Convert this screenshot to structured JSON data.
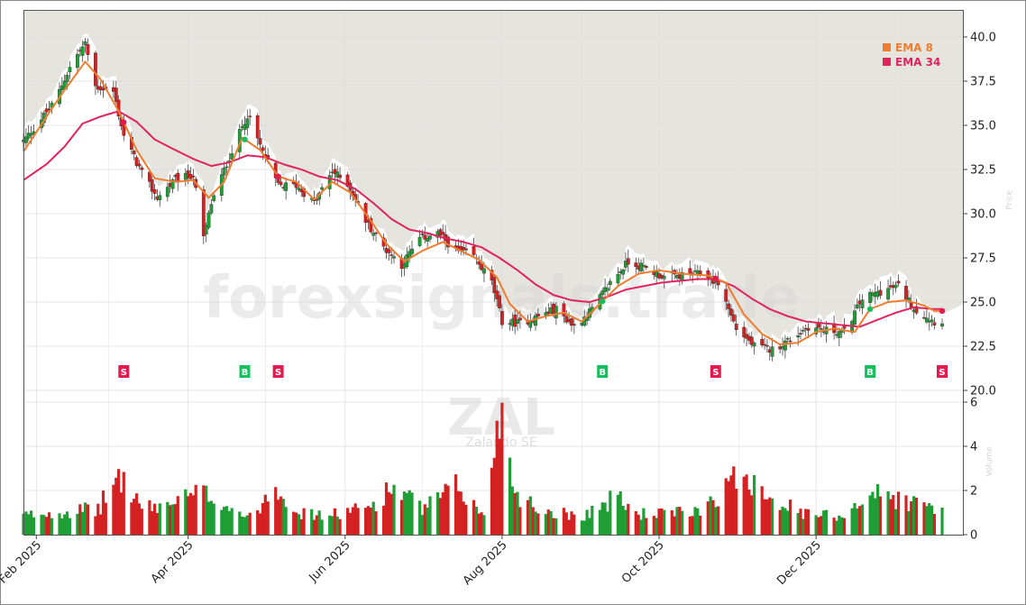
{
  "chart_data": {
    "type": "candlestick",
    "symbol": "ZAL",
    "company": "Zalando SE",
    "watermark": "forexsignals.trade",
    "side_labels": {
      "price": "Price",
      "volume": "Volume"
    },
    "colors": {
      "up": "#1e9e35",
      "down": "#d42121",
      "ema8": "#f07c2e",
      "ema34": "#e0245e",
      "buy": "#13c15c",
      "sell": "#e5194f",
      "background_top": "#e6e4de",
      "grid": "#dddddd"
    },
    "legend": [
      {
        "name": "EMA 8",
        "color": "#f07c2e"
      },
      {
        "name": "EMA 34",
        "color": "#e0245e"
      }
    ],
    "price_axis": {
      "min": 19.0,
      "max": 41.0,
      "ticks": [
        "40.0",
        "37.5",
        "35.0",
        "32.5",
        "30.0",
        "27.5",
        "25.0",
        "22.5",
        "20.0"
      ]
    },
    "volume_axis": {
      "min": 0,
      "max": 7,
      "ticks": [
        "0",
        "2",
        "4",
        "6"
      ],
      "unit": "millions"
    },
    "x_axis": {
      "start": "2025-01-27",
      "end": "2026-01-19",
      "ticks": [
        {
          "label": "Feb 2025",
          "date": "2025-02-01"
        },
        {
          "label": "Apr 2025",
          "date": "2025-04-01"
        },
        {
          "label": "Jun 2025",
          "date": "2025-06-01"
        },
        {
          "label": "Aug 2025",
          "date": "2025-08-01"
        },
        {
          "label": "Oct 2025",
          "date": "2025-10-01"
        },
        {
          "label": "Dec 2025",
          "date": "2025-12-01"
        }
      ]
    },
    "close_anchors": [
      [
        "2025-01-27",
        34.1
      ],
      [
        "2025-02-01",
        35.0
      ],
      [
        "2025-02-08",
        36.3
      ],
      [
        "2025-02-15",
        38.6
      ],
      [
        "2025-02-20",
        39.6
      ],
      [
        "2025-02-24",
        37.2
      ],
      [
        "2025-03-03",
        36.9
      ],
      [
        "2025-03-07",
        34.4
      ],
      [
        "2025-03-14",
        32.3
      ],
      [
        "2025-03-20",
        30.9
      ],
      [
        "2025-03-27",
        31.9
      ],
      [
        "2025-04-03",
        32.2
      ],
      [
        "2025-04-07",
        28.6
      ],
      [
        "2025-04-10",
        30.6
      ],
      [
        "2025-04-17",
        33.2
      ],
      [
        "2025-04-24",
        35.6
      ],
      [
        "2025-04-30",
        33.5
      ],
      [
        "2025-05-06",
        31.6
      ],
      [
        "2025-05-13",
        31.6
      ],
      [
        "2025-05-20",
        30.6
      ],
      [
        "2025-05-27",
        32.4
      ],
      [
        "2025-06-02",
        31.7
      ],
      [
        "2025-06-09",
        29.6
      ],
      [
        "2025-06-16",
        28.1
      ],
      [
        "2025-06-23",
        27.1
      ],
      [
        "2025-06-30",
        28.6
      ],
      [
        "2025-07-07",
        28.9
      ],
      [
        "2025-07-14",
        27.9
      ],
      [
        "2025-07-21",
        27.6
      ],
      [
        "2025-07-28",
        26.1
      ],
      [
        "2025-08-01",
        23.9
      ],
      [
        "2025-08-08",
        23.8
      ],
      [
        "2025-08-15",
        24.2
      ],
      [
        "2025-08-22",
        24.6
      ],
      [
        "2025-08-29",
        23.6
      ],
      [
        "2025-09-05",
        24.6
      ],
      [
        "2025-09-12",
        26.1
      ],
      [
        "2025-09-19",
        27.3
      ],
      [
        "2025-09-26",
        26.9
      ],
      [
        "2025-10-03",
        26.4
      ],
      [
        "2025-10-10",
        26.5
      ],
      [
        "2025-10-17",
        26.6
      ],
      [
        "2025-10-24",
        26.1
      ],
      [
        "2025-10-31",
        23.5
      ],
      [
        "2025-11-07",
        22.5
      ],
      [
        "2025-11-14",
        22.3
      ],
      [
        "2025-11-21",
        22.9
      ],
      [
        "2025-11-28",
        23.6
      ],
      [
        "2025-12-05",
        23.4
      ],
      [
        "2025-12-12",
        23.3
      ],
      [
        "2025-12-19",
        25.2
      ],
      [
        "2025-12-26",
        25.6
      ],
      [
        "2026-01-02",
        25.9
      ],
      [
        "2026-01-09",
        24.5
      ],
      [
        "2026-01-16",
        23.9
      ]
    ],
    "ema8_anchors": [
      [
        "2025-01-27",
        33.5
      ],
      [
        "2025-02-05",
        35.5
      ],
      [
        "2025-02-12",
        37.0
      ],
      [
        "2025-02-20",
        38.6
      ],
      [
        "2025-02-26",
        37.6
      ],
      [
        "2025-03-05",
        35.8
      ],
      [
        "2025-03-12",
        33.6
      ],
      [
        "2025-03-19",
        32.0
      ],
      [
        "2025-03-27",
        31.8
      ],
      [
        "2025-04-03",
        31.9
      ],
      [
        "2025-04-09",
        30.9
      ],
      [
        "2025-04-15",
        31.8
      ],
      [
        "2025-04-22",
        34.3
      ],
      [
        "2025-04-29",
        33.6
      ],
      [
        "2025-05-06",
        32.1
      ],
      [
        "2025-05-13",
        31.8
      ],
      [
        "2025-05-20",
        30.8
      ],
      [
        "2025-05-27",
        31.8
      ],
      [
        "2025-06-03",
        31.2
      ],
      [
        "2025-06-10",
        29.8
      ],
      [
        "2025-06-17",
        28.3
      ],
      [
        "2025-06-24",
        27.3
      ],
      [
        "2025-07-01",
        27.9
      ],
      [
        "2025-07-09",
        28.4
      ],
      [
        "2025-07-16",
        27.9
      ],
      [
        "2025-07-23",
        27.4
      ],
      [
        "2025-07-30",
        26.4
      ],
      [
        "2025-08-04",
        24.9
      ],
      [
        "2025-08-11",
        23.9
      ],
      [
        "2025-08-18",
        24.2
      ],
      [
        "2025-08-25",
        24.4
      ],
      [
        "2025-09-01",
        23.9
      ],
      [
        "2025-09-08",
        24.9
      ],
      [
        "2025-09-15",
        25.9
      ],
      [
        "2025-09-23",
        26.6
      ],
      [
        "2025-10-01",
        26.8
      ],
      [
        "2025-10-10",
        26.6
      ],
      [
        "2025-10-20",
        26.5
      ],
      [
        "2025-10-27",
        26.1
      ],
      [
        "2025-11-03",
        24.3
      ],
      [
        "2025-11-10",
        23.2
      ],
      [
        "2025-11-17",
        22.6
      ],
      [
        "2025-11-24",
        22.7
      ],
      [
        "2025-12-01",
        23.3
      ],
      [
        "2025-12-08",
        23.5
      ],
      [
        "2025-12-16",
        23.3
      ],
      [
        "2025-12-22",
        24.6
      ],
      [
        "2025-12-29",
        25.0
      ],
      [
        "2026-01-05",
        25.1
      ],
      [
        "2026-01-12",
        24.8
      ],
      [
        "2026-01-16",
        24.5
      ]
    ],
    "ema34_anchors": [
      [
        "2025-01-27",
        31.9
      ],
      [
        "2025-02-05",
        32.8
      ],
      [
        "2025-02-12",
        33.8
      ],
      [
        "2025-02-19",
        35.1
      ],
      [
        "2025-02-26",
        35.5
      ],
      [
        "2025-03-05",
        35.8
      ],
      [
        "2025-03-12",
        35.2
      ],
      [
        "2025-03-19",
        34.2
      ],
      [
        "2025-03-27",
        33.6
      ],
      [
        "2025-04-03",
        33.1
      ],
      [
        "2025-04-10",
        32.7
      ],
      [
        "2025-04-17",
        32.9
      ],
      [
        "2025-04-24",
        33.3
      ],
      [
        "2025-05-01",
        33.2
      ],
      [
        "2025-05-08",
        32.8
      ],
      [
        "2025-05-15",
        32.5
      ],
      [
        "2025-05-22",
        32.1
      ],
      [
        "2025-05-29",
        31.9
      ],
      [
        "2025-06-05",
        31.4
      ],
      [
        "2025-06-12",
        30.6
      ],
      [
        "2025-06-19",
        29.7
      ],
      [
        "2025-06-26",
        29.1
      ],
      [
        "2025-07-03",
        28.9
      ],
      [
        "2025-07-10",
        28.6
      ],
      [
        "2025-07-17",
        28.4
      ],
      [
        "2025-07-24",
        28.1
      ],
      [
        "2025-07-31",
        27.5
      ],
      [
        "2025-08-07",
        26.8
      ],
      [
        "2025-08-14",
        26.0
      ],
      [
        "2025-08-21",
        25.4
      ],
      [
        "2025-08-28",
        25.1
      ],
      [
        "2025-09-04",
        25.0
      ],
      [
        "2025-09-11",
        25.3
      ],
      [
        "2025-09-18",
        25.7
      ],
      [
        "2025-09-25",
        25.9
      ],
      [
        "2025-10-02",
        26.1
      ],
      [
        "2025-10-09",
        26.2
      ],
      [
        "2025-10-16",
        26.3
      ],
      [
        "2025-10-23",
        26.3
      ],
      [
        "2025-10-30",
        25.9
      ],
      [
        "2025-11-06",
        25.2
      ],
      [
        "2025-11-13",
        24.6
      ],
      [
        "2025-11-20",
        24.2
      ],
      [
        "2025-11-27",
        23.9
      ],
      [
        "2025-12-04",
        23.8
      ],
      [
        "2025-12-11",
        23.7
      ],
      [
        "2025-12-18",
        23.6
      ],
      [
        "2025-12-25",
        24.0
      ],
      [
        "2026-01-01",
        24.4
      ],
      [
        "2026-01-08",
        24.7
      ],
      [
        "2026-01-16",
        24.6
      ]
    ],
    "volume_anchors": [
      [
        "2025-01-27",
        0.9
      ],
      [
        "2025-02-10",
        1.1
      ],
      [
        "2025-02-25",
        1.2
      ],
      [
        "2025-03-05",
        2.8
      ],
      [
        "2025-03-15",
        1.2
      ],
      [
        "2025-03-25",
        1.5
      ],
      [
        "2025-04-07",
        2.0
      ],
      [
        "2025-04-15",
        1.5
      ],
      [
        "2025-04-25",
        0.8
      ],
      [
        "2025-05-05",
        2.4
      ],
      [
        "2025-05-15",
        1.0
      ],
      [
        "2025-05-25",
        0.9
      ],
      [
        "2025-06-10",
        1.3
      ],
      [
        "2025-06-20",
        2.3
      ],
      [
        "2025-07-01",
        1.2
      ],
      [
        "2025-07-15",
        2.3
      ],
      [
        "2025-07-25",
        0.8
      ],
      [
        "2025-07-31",
        6.2
      ],
      [
        "2025-08-06",
        2.1
      ],
      [
        "2025-08-15",
        1.2
      ],
      [
        "2025-09-01",
        0.9
      ],
      [
        "2025-09-15",
        1.8
      ],
      [
        "2025-09-22",
        1.0
      ],
      [
        "2025-10-05",
        1.0
      ],
      [
        "2025-10-15",
        1.1
      ],
      [
        "2025-10-28",
        2.3
      ],
      [
        "2025-11-03",
        3.1
      ],
      [
        "2025-11-12",
        2.0
      ],
      [
        "2025-11-25",
        1.0
      ],
      [
        "2025-12-10",
        0.9
      ],
      [
        "2025-12-23",
        2.0
      ],
      [
        "2026-01-05",
        1.6
      ],
      [
        "2026-01-16",
        1.3
      ]
    ],
    "signals": [
      {
        "label": "S",
        "type": "sell",
        "date": "2025-03-07"
      },
      {
        "label": "B",
        "type": "buy",
        "date": "2025-04-23"
      },
      {
        "label": "S",
        "type": "sell",
        "date": "2025-05-06"
      },
      {
        "label": "B",
        "type": "buy",
        "date": "2025-09-09"
      },
      {
        "label": "S",
        "type": "sell",
        "date": "2025-10-23"
      },
      {
        "label": "B",
        "type": "buy",
        "date": "2025-12-22"
      },
      {
        "label": "S",
        "type": "sell",
        "date": "2026-01-19"
      }
    ]
  }
}
